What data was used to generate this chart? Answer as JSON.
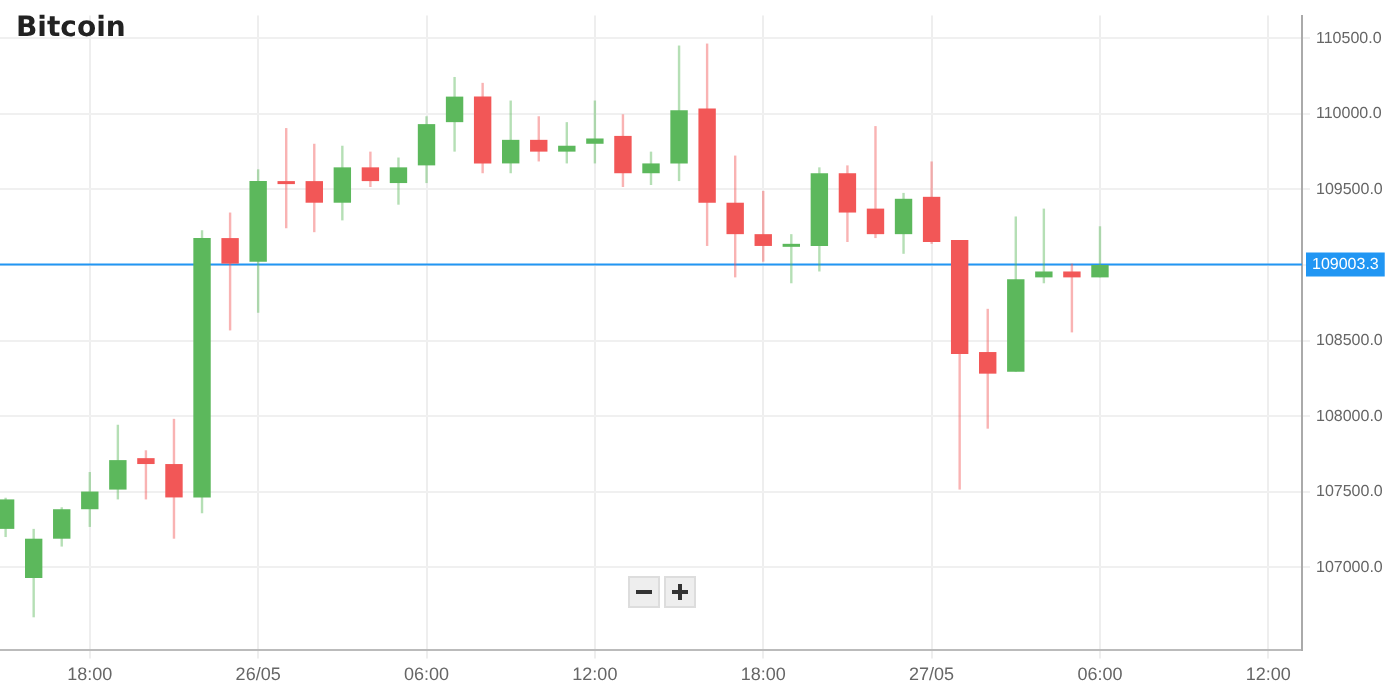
{
  "chart_data": {
    "type": "candlestick",
    "title": "Bitcoin",
    "x": [
      "--05-25T15:00",
      "--05-25T16:00",
      "--05-25T17:00",
      "--05-25T18:00",
      "--05-25T19:00",
      "--05-25T20:00",
      "--05-25T21:00",
      "--05-25T22:00",
      "--05-25T23:00",
      "--05-26T00:00",
      "--05-26T01:00",
      "--05-26T02:00",
      "--05-26T03:00",
      "--05-26T04:00",
      "--05-26T05:00",
      "--05-26T06:00",
      "--05-26T07:00",
      "--05-26T08:00",
      "--05-26T09:00",
      "--05-26T10:00",
      "--05-26T11:00",
      "--05-26T12:00",
      "--05-26T13:00",
      "--05-26T14:00",
      "--05-26T15:00",
      "--05-26T16:00",
      "--05-26T17:00",
      "--05-26T18:00",
      "--05-26T19:00",
      "--05-26T20:00",
      "--05-26T21:00",
      "--05-26T22:00",
      "--05-26T23:00",
      "--05-27T00:00",
      "--05-27T01:00",
      "--05-27T02:00",
      "--05-27T03:00",
      "--05-27T04:00",
      "--05-27T05:00",
      "--05-27T06:00"
    ],
    "ohlc": [
      [
        107254,
        107460,
        107200,
        107449
      ],
      [
        106929,
        107254,
        106669,
        107189
      ],
      [
        107189,
        107397,
        107137,
        107384
      ],
      [
        107384,
        107630,
        107267,
        107501
      ],
      [
        107514,
        107943,
        107449,
        107709
      ],
      [
        107722,
        107774,
        107449,
        107683
      ],
      [
        107683,
        107982,
        107189,
        107462
      ],
      [
        107462,
        109230,
        107358,
        109178
      ],
      [
        109178,
        109347,
        108567,
        109009
      ],
      [
        109022,
        109633,
        108684,
        109555
      ],
      [
        109555,
        109906,
        109243,
        109550
      ],
      [
        109555,
        109802,
        109217,
        109412
      ],
      [
        109412,
        109789,
        109295,
        109646
      ],
      [
        109646,
        109750,
        109516,
        109555
      ],
      [
        109542,
        109711,
        109399,
        109646
      ],
      [
        109659,
        109984,
        109542,
        109932
      ],
      [
        109945,
        110244,
        109750,
        110114
      ],
      [
        110114,
        110205,
        109607,
        109672
      ],
      [
        109672,
        110088,
        109607,
        109828
      ],
      [
        109828,
        109984,
        109685,
        109750
      ],
      [
        109750,
        109945,
        109672,
        109789
      ],
      [
        109802,
        110088,
        109672,
        109837
      ],
      [
        109854,
        109997,
        109516,
        109607
      ],
      [
        109607,
        109750,
        109529,
        109672
      ],
      [
        109672,
        110452,
        109555,
        110023
      ],
      [
        110036,
        110465,
        109126,
        109412
      ],
      [
        109412,
        109724,
        108918,
        109204
      ],
      [
        109204,
        109490,
        109022,
        109126
      ],
      [
        109126,
        109204,
        108879,
        109140
      ],
      [
        109126,
        109646,
        108957,
        109607
      ],
      [
        109607,
        109659,
        109152,
        109347
      ],
      [
        109373,
        109919,
        109178,
        109204
      ],
      [
        109204,
        109477,
        109074,
        109438
      ],
      [
        109451,
        109685,
        109140,
        109152
      ],
      [
        109165,
        109165,
        107514,
        108411
      ],
      [
        108424,
        108710,
        107917,
        108281
      ],
      [
        108294,
        109321,
        108294,
        108905
      ],
      [
        108918,
        109373,
        108879,
        108957
      ],
      [
        108957,
        109009,
        108554,
        108918
      ],
      [
        108918,
        109256,
        108918,
        109000
      ]
    ],
    "colors": [
      "#5cb85c",
      "#5cb85c",
      "#5cb85c",
      "#5cb85c",
      "#5cb85c",
      "#f25757",
      "#f25757",
      "#5cb85c",
      "#f25757",
      "#5cb85c",
      "#f25757",
      "#f25757",
      "#5cb85c",
      "#f25757",
      "#5cb85c",
      "#5cb85c",
      "#5cb85c",
      "#f25757",
      "#5cb85c",
      "#f25757",
      "#5cb85c",
      "#5cb85c",
      "#f25757",
      "#5cb85c",
      "#5cb85c",
      "#f25757",
      "#f25757",
      "#f25757",
      "#5cb85c",
      "#5cb85c",
      "#f25757",
      "#f25757",
      "#5cb85c",
      "#f25757",
      "#f25757",
      "#f25757",
      "#5cb85c",
      "#5cb85c",
      "#f25757",
      "#5cb85c"
    ],
    "xlim": [
      "--05-25T14:48",
      "--05-27T13:12"
    ],
    "xticks": [
      {
        "value": "--05-25T18:00",
        "label": "18:00"
      },
      {
        "value": "--05-26T00:00",
        "label": "26/05"
      },
      {
        "value": "--05-26T06:00",
        "label": "06:00"
      },
      {
        "value": "--05-26T12:00",
        "label": "12:00"
      },
      {
        "value": "--05-26T18:00",
        "label": "18:00"
      },
      {
        "value": "--05-27T00:00",
        "label": "27/05"
      },
      {
        "value": "--05-27T06:00",
        "label": "06:00"
      },
      {
        "value": "--05-27T12:00",
        "label": "12:00"
      }
    ],
    "ylim": [
      106450,
      110650
    ],
    "yticks": [
      {
        "value": 107000,
        "label": "107000.0"
      },
      {
        "value": 107500,
        "label": "107500.0"
      },
      {
        "value": 108000,
        "label": "108000.0"
      },
      {
        "value": 108500,
        "label": "108500.0"
      },
      {
        "value": 109000,
        "label": null
      },
      {
        "value": 109500,
        "label": "109500.0"
      },
      {
        "value": 110000,
        "label": "110000.0"
      },
      {
        "value": 110500,
        "label": "110500.0"
      }
    ],
    "ref_lines": [
      {
        "axis": "y",
        "value": 109003.3,
        "label": "109003.3",
        "color": "#2196f3"
      }
    ],
    "grid": true,
    "legend": false
  }
}
